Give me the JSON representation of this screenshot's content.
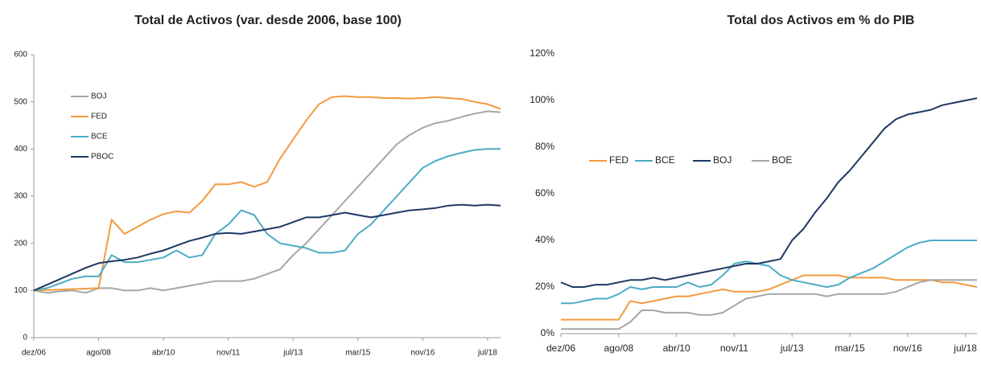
{
  "chart_data": [
    {
      "type": "line",
      "title": "Total de Activos (var. desde 2006, base 100)",
      "categories": [
        "dez/06",
        null,
        null,
        null,
        null,
        "ago/08",
        null,
        null,
        null,
        null,
        "abr/10",
        null,
        null,
        null,
        null,
        "nov/11",
        null,
        null,
        null,
        null,
        "jul/13",
        null,
        null,
        null,
        null,
        "mar/15",
        null,
        null,
        null,
        null,
        "nov/16",
        null,
        null,
        null,
        null,
        "jul/18",
        null
      ],
      "ylim": [
        0,
        600
      ],
      "yticks": [
        0,
        100,
        200,
        300,
        400,
        500,
        600
      ],
      "legend": "upper left",
      "grid": false,
      "series": [
        {
          "name": "BOJ",
          "color": "#a6a6a6",
          "values": [
            100,
            95,
            98,
            100,
            95,
            105,
            105,
            100,
            100,
            105,
            100,
            105,
            110,
            115,
            120,
            120,
            120,
            125,
            135,
            145,
            175,
            200,
            230,
            260,
            290,
            320,
            350,
            380,
            410,
            430,
            445,
            455,
            460,
            468,
            475,
            480,
            478
          ]
        },
        {
          "name": "FED",
          "color": "#f39a3d",
          "values": [
            100,
            101,
            102,
            103,
            104,
            105,
            250,
            220,
            235,
            250,
            262,
            268,
            265,
            290,
            325,
            325,
            330,
            320,
            330,
            380,
            420,
            460,
            495,
            510,
            512,
            510,
            510,
            508,
            508,
            507,
            508,
            510,
            508,
            506,
            500,
            495,
            485
          ]
        },
        {
          "name": "BCE",
          "color": "#4bacc6",
          "values": [
            100,
            105,
            115,
            125,
            130,
            130,
            175,
            160,
            160,
            165,
            170,
            185,
            170,
            175,
            220,
            240,
            270,
            260,
            220,
            200,
            195,
            190,
            180,
            180,
            185,
            220,
            240,
            270,
            300,
            330,
            360,
            375,
            385,
            392,
            398,
            400,
            400
          ]
        },
        {
          "name": "PBOC",
          "color": "#1f3864",
          "values": [
            100,
            112,
            124,
            136,
            148,
            158,
            162,
            165,
            170,
            178,
            185,
            195,
            205,
            212,
            220,
            222,
            220,
            225,
            230,
            235,
            245,
            255,
            255,
            260,
            265,
            260,
            255,
            260,
            265,
            270,
            272,
            275,
            280,
            282,
            280,
            282,
            280
          ]
        }
      ]
    },
    {
      "type": "line",
      "title": "Total dos Activos em % do PIB",
      "categories": [
        "dez/06",
        null,
        null,
        null,
        null,
        "ago/08",
        null,
        null,
        null,
        null,
        "abr/10",
        null,
        null,
        null,
        null,
        "nov/11",
        null,
        null,
        null,
        null,
        "jul/13",
        null,
        null,
        null,
        null,
        "mar/15",
        null,
        null,
        null,
        null,
        "nov/16",
        null,
        null,
        null,
        null,
        "jul/18",
        null
      ],
      "ylim": [
        0,
        120
      ],
      "yticks": [
        {
          "value": 0,
          "label": "0%"
        },
        {
          "value": 20,
          "label": "20%"
        },
        {
          "value": 40,
          "label": "40%"
        },
        {
          "value": 60,
          "label": "60%"
        },
        {
          "value": 80,
          "label": "80%"
        },
        {
          "value": 100,
          "label": "100%"
        },
        {
          "value": 120,
          "label": "120%"
        }
      ],
      "legend": "center left",
      "grid": false,
      "series": [
        {
          "name": "FED",
          "color": "#f39a3d",
          "values": [
            6,
            6,
            6,
            6,
            6,
            6,
            14,
            13,
            14,
            15,
            16,
            16,
            17,
            18,
            19,
            18,
            18,
            18,
            19,
            21,
            23,
            25,
            25,
            25,
            25,
            24,
            24,
            24,
            24,
            23,
            23,
            23,
            23,
            22,
            22,
            21,
            20
          ]
        },
        {
          "name": "BCE",
          "color": "#4bacc6",
          "values": [
            13,
            13,
            14,
            15,
            15,
            17,
            20,
            19,
            20,
            20,
            20,
            22,
            20,
            21,
            25,
            30,
            31,
            30,
            29,
            25,
            23,
            22,
            21,
            20,
            21,
            24,
            26,
            28,
            31,
            34,
            37,
            39,
            40,
            40,
            40,
            40,
            40
          ]
        },
        {
          "name": "BOJ",
          "color": "#1f3864",
          "values": [
            22,
            20,
            20,
            21,
            21,
            22,
            23,
            23,
            24,
            23,
            24,
            25,
            26,
            27,
            28,
            29,
            30,
            30,
            31,
            32,
            40,
            45,
            52,
            58,
            65,
            70,
            76,
            82,
            88,
            92,
            94,
            95,
            96,
            98,
            99,
            100,
            101
          ]
        },
        {
          "name": "BOE",
          "color": "#a6a6a6",
          "values": [
            2,
            2,
            2,
            2,
            2,
            2,
            5,
            10,
            10,
            9,
            9,
            9,
            8,
            8,
            9,
            12,
            15,
            16,
            17,
            17,
            17,
            17,
            17,
            16,
            17,
            17,
            17,
            17,
            17,
            18,
            20,
            22,
            23,
            23,
            23,
            23,
            23
          ]
        }
      ]
    }
  ]
}
